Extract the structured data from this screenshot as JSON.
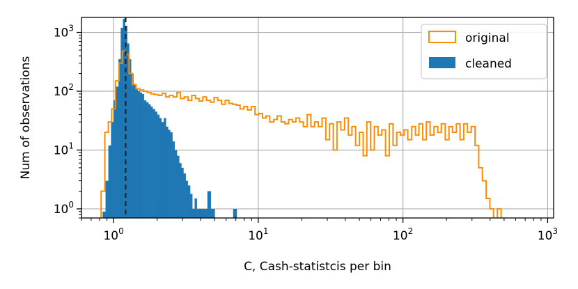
{
  "chart_data": {
    "type": "histogram",
    "xlabel": "C, Cash-statistcis per bin",
    "ylabel": "Num of observations",
    "x_scale": "log",
    "y_scale": "log",
    "xlim": [
      0.6,
      1100
    ],
    "ylim": [
      0.7,
      1800
    ],
    "grid": true,
    "legend_position": "top-right",
    "x_ticks": [
      {
        "value": 1,
        "label": "10",
        "exp": "0"
      },
      {
        "value": 10,
        "label": "10",
        "exp": "1"
      },
      {
        "value": 100,
        "label": "10",
        "exp": "2"
      },
      {
        "value": 1000,
        "label": "10",
        "exp": "3"
      }
    ],
    "y_ticks": [
      {
        "value": 1,
        "label": "10",
        "exp": "0"
      },
      {
        "value": 10,
        "label": "10",
        "exp": "1"
      },
      {
        "value": 100,
        "label": "10",
        "exp": "2"
      },
      {
        "value": 1000,
        "label": "10",
        "exp": "3"
      }
    ],
    "vline": {
      "x": 1.21,
      "style": "dashed"
    },
    "series": [
      {
        "name": "original",
        "style": "step-outline",
        "color": "#ff8c00",
        "bins": [
          [
            0.82,
            0.87,
            2
          ],
          [
            0.87,
            0.92,
            20
          ],
          [
            0.92,
            0.97,
            30
          ],
          [
            0.97,
            1.03,
            50
          ],
          [
            1.03,
            1.09,
            150
          ],
          [
            1.09,
            1.15,
            300
          ],
          [
            1.15,
            1.21,
            480
          ],
          [
            1.21,
            1.28,
            420
          ],
          [
            1.28,
            1.35,
            200
          ],
          [
            1.35,
            1.43,
            130
          ],
          [
            1.43,
            1.52,
            110
          ],
          [
            1.52,
            1.61,
            105
          ],
          [
            1.61,
            1.71,
            100
          ],
          [
            1.71,
            1.81,
            95
          ],
          [
            1.81,
            1.92,
            90
          ],
          [
            1.92,
            2.04,
            88
          ],
          [
            2.04,
            2.16,
            85
          ],
          [
            2.16,
            2.29,
            92
          ],
          [
            2.29,
            2.43,
            80
          ],
          [
            2.43,
            2.58,
            85
          ],
          [
            2.58,
            2.74,
            80
          ],
          [
            2.74,
            2.9,
            95
          ],
          [
            2.9,
            3.08,
            75
          ],
          [
            3.08,
            3.27,
            80
          ],
          [
            3.27,
            3.47,
            70
          ],
          [
            3.47,
            3.68,
            85
          ],
          [
            3.68,
            3.9,
            75
          ],
          [
            3.9,
            4.14,
            68
          ],
          [
            4.14,
            4.39,
            80
          ],
          [
            4.39,
            4.66,
            70
          ],
          [
            4.66,
            4.95,
            65
          ],
          [
            4.95,
            5.25,
            78
          ],
          [
            5.25,
            5.57,
            70
          ],
          [
            5.57,
            5.91,
            60
          ],
          [
            5.91,
            6.27,
            70
          ],
          [
            6.27,
            6.65,
            62
          ],
          [
            6.65,
            7.06,
            60
          ],
          [
            7.06,
            7.49,
            58
          ],
          [
            7.49,
            7.95,
            50
          ],
          [
            7.95,
            8.43,
            55
          ],
          [
            8.43,
            8.95,
            48
          ],
          [
            8.95,
            9.5,
            55
          ],
          [
            9.5,
            10.1,
            40
          ],
          [
            10.1,
            10.7,
            42
          ],
          [
            10.7,
            11.3,
            35
          ],
          [
            11.3,
            12.0,
            38
          ],
          [
            12.0,
            12.8,
            30
          ],
          [
            12.8,
            13.5,
            33
          ],
          [
            13.5,
            14.4,
            38
          ],
          [
            14.4,
            15.3,
            30
          ],
          [
            15.3,
            16.2,
            28
          ],
          [
            16.2,
            17.2,
            33
          ],
          [
            17.2,
            18.2,
            30
          ],
          [
            18.2,
            19.3,
            35
          ],
          [
            19.3,
            20.5,
            30
          ],
          [
            20.5,
            21.8,
            25
          ],
          [
            21.8,
            23.1,
            40
          ],
          [
            23.1,
            24.5,
            25
          ],
          [
            24.5,
            26.0,
            30
          ],
          [
            26.0,
            27.6,
            25
          ],
          [
            27.6,
            29.3,
            35
          ],
          [
            29.3,
            31.1,
            15
          ],
          [
            31.1,
            33.0,
            28
          ],
          [
            33.0,
            35.0,
            10
          ],
          [
            35.0,
            37.2,
            30
          ],
          [
            37.2,
            39.5,
            22
          ],
          [
            39.5,
            41.9,
            35
          ],
          [
            41.9,
            44.4,
            18
          ],
          [
            44.4,
            47.1,
            25
          ],
          [
            47.1,
            50.0,
            12
          ],
          [
            50.0,
            53.1,
            20
          ],
          [
            53.1,
            56.3,
            8
          ],
          [
            56.3,
            59.8,
            30
          ],
          [
            59.8,
            63.4,
            10
          ],
          [
            63.4,
            67.3,
            25
          ],
          [
            67.3,
            71.4,
            18
          ],
          [
            71.4,
            75.8,
            22
          ],
          [
            75.8,
            80.5,
            8
          ],
          [
            80.5,
            85.4,
            28
          ],
          [
            85.4,
            90.6,
            12
          ],
          [
            90.6,
            96.2,
            20
          ],
          [
            96.2,
            102,
            18
          ],
          [
            102,
            108,
            22
          ],
          [
            108,
            115,
            15
          ],
          [
            115,
            122,
            25
          ],
          [
            122,
            129,
            18
          ],
          [
            129,
            137,
            28
          ],
          [
            137,
            145,
            15
          ],
          [
            145,
            154,
            30
          ],
          [
            154,
            164,
            18
          ],
          [
            164,
            174,
            25
          ],
          [
            174,
            184,
            20
          ],
          [
            184,
            196,
            28
          ],
          [
            196,
            208,
            15
          ],
          [
            208,
            220,
            25
          ],
          [
            220,
            234,
            20
          ],
          [
            234,
            248,
            28
          ],
          [
            248,
            263,
            15
          ],
          [
            263,
            279,
            28
          ],
          [
            279,
            296,
            20
          ],
          [
            296,
            315,
            25
          ],
          [
            315,
            334,
            12
          ],
          [
            334,
            354,
            5
          ],
          [
            354,
            376,
            3
          ],
          [
            376,
            399,
            1.5
          ],
          [
            399,
            423,
            1
          ],
          [
            423,
            449,
            0.4
          ],
          [
            449,
            477,
            1
          ],
          [
            477,
            506,
            0.4
          ]
        ]
      },
      {
        "name": "cleaned",
        "style": "filled",
        "color": "#1f77b4",
        "bins": [
          [
            0.84,
            0.88,
            0.9
          ],
          [
            0.88,
            0.92,
            3
          ],
          [
            0.92,
            0.96,
            12
          ],
          [
            0.96,
            1.0,
            30
          ],
          [
            1.0,
            1.04,
            70
          ],
          [
            1.04,
            1.08,
            120
          ],
          [
            1.08,
            1.12,
            350
          ],
          [
            1.12,
            1.16,
            1200
          ],
          [
            1.16,
            1.2,
            1700
          ],
          [
            1.2,
            1.24,
            1300
          ],
          [
            1.24,
            1.28,
            650
          ],
          [
            1.28,
            1.32,
            350
          ],
          [
            1.32,
            1.37,
            200
          ],
          [
            1.37,
            1.42,
            130
          ],
          [
            1.42,
            1.47,
            110
          ],
          [
            1.47,
            1.52,
            100
          ],
          [
            1.52,
            1.57,
            95
          ],
          [
            1.57,
            1.62,
            90
          ],
          [
            1.62,
            1.68,
            70
          ],
          [
            1.68,
            1.74,
            65
          ],
          [
            1.74,
            1.8,
            60
          ],
          [
            1.8,
            1.86,
            55
          ],
          [
            1.86,
            1.93,
            50
          ],
          [
            1.93,
            2.0,
            45
          ],
          [
            2.0,
            2.07,
            40
          ],
          [
            2.07,
            2.14,
            35
          ],
          [
            2.14,
            2.22,
            30
          ],
          [
            2.22,
            2.3,
            35
          ],
          [
            2.3,
            2.38,
            25
          ],
          [
            2.38,
            2.46,
            22
          ],
          [
            2.46,
            2.55,
            20
          ],
          [
            2.55,
            2.64,
            14
          ],
          [
            2.64,
            2.74,
            10
          ],
          [
            2.74,
            2.84,
            8
          ],
          [
            2.84,
            2.94,
            6
          ],
          [
            2.94,
            3.04,
            5
          ],
          [
            3.04,
            3.15,
            4
          ],
          [
            3.15,
            3.26,
            3
          ],
          [
            3.26,
            3.38,
            2.5
          ],
          [
            3.38,
            3.5,
            1.8
          ],
          [
            3.5,
            3.63,
            1
          ],
          [
            3.63,
            3.76,
            1.5
          ],
          [
            3.76,
            3.9,
            1
          ],
          [
            3.9,
            4.05,
            1
          ],
          [
            4.05,
            4.2,
            1
          ],
          [
            4.2,
            4.45,
            1
          ],
          [
            4.45,
            4.7,
            2
          ],
          [
            4.7,
            5.0,
            1
          ],
          [
            6.7,
            7.1,
            1
          ]
        ]
      }
    ]
  }
}
